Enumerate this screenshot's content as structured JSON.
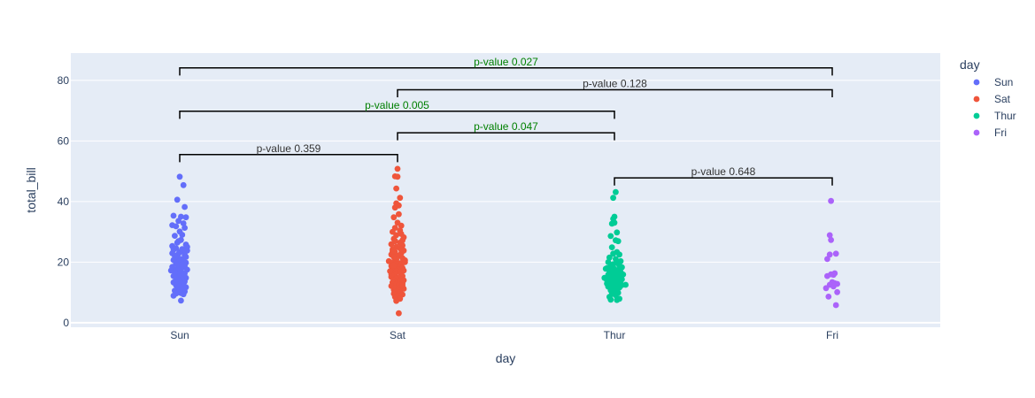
{
  "chart_data": {
    "type": "scatter",
    "subtype": "strip",
    "xlabel": "day",
    "ylabel": "total_bill",
    "categories": [
      "Sun",
      "Sat",
      "Thur",
      "Fri"
    ],
    "ylim": [
      -1.5,
      89
    ],
    "yticks": [
      0,
      20,
      40,
      60,
      80
    ],
    "grid": true,
    "legend": {
      "title": "day",
      "placement": "top-right"
    },
    "colors": {
      "plot_bg": "#e5ecf6",
      "significant": "#008000",
      "not_significant": "#333333",
      "bracket": "#000000"
    },
    "series": [
      {
        "name": "Sun",
        "color": "#636efa",
        "points": [
          [
            0.0,
            48.2
          ],
          [
            0.03,
            45.4
          ],
          [
            -0.02,
            40.6
          ],
          [
            0.04,
            38.2
          ],
          [
            -0.05,
            35.3
          ],
          [
            0.01,
            35.0
          ],
          [
            0.05,
            34.8
          ],
          [
            -0.01,
            33.6
          ],
          [
            0.03,
            32.8
          ],
          [
            -0.06,
            32.2
          ],
          [
            -0.03,
            31.8
          ],
          [
            0.04,
            31.3
          ],
          [
            0.0,
            30.1
          ],
          [
            0.02,
            29.0
          ],
          [
            -0.04,
            28.7
          ],
          [
            0.01,
            27.3
          ],
          [
            -0.02,
            26.4
          ],
          [
            0.05,
            25.8
          ],
          [
            -0.06,
            25.3
          ],
          [
            0.06,
            25.0
          ],
          [
            -0.03,
            24.6
          ],
          [
            0.02,
            24.3
          ],
          [
            -0.05,
            24.1
          ],
          [
            0.03,
            23.7
          ],
          [
            0.0,
            23.3
          ],
          [
            -0.01,
            22.8
          ],
          [
            0.04,
            22.4
          ],
          [
            -0.04,
            22.1
          ],
          [
            0.05,
            21.7
          ],
          [
            -0.02,
            21.3
          ],
          [
            0.01,
            21.0
          ],
          [
            -0.05,
            20.7
          ],
          [
            0.03,
            20.4
          ],
          [
            -0.01,
            20.1
          ],
          [
            0.05,
            19.8
          ],
          [
            -0.03,
            19.5
          ],
          [
            0.0,
            19.1
          ],
          [
            0.04,
            18.7
          ],
          [
            -0.06,
            18.4
          ],
          [
            0.02,
            18.1
          ],
          [
            -0.02,
            17.8
          ],
          [
            0.06,
            17.5
          ],
          [
            -0.07,
            17.2
          ],
          [
            -0.04,
            16.9
          ],
          [
            0.01,
            16.6
          ],
          [
            0.04,
            16.3
          ],
          [
            -0.02,
            16.0
          ],
          [
            0.03,
            15.7
          ],
          [
            -0.05,
            15.4
          ],
          [
            0.0,
            15.1
          ],
          [
            0.05,
            14.8
          ],
          [
            -0.03,
            14.5
          ],
          [
            0.02,
            14.2
          ],
          [
            -0.01,
            13.9
          ],
          [
            0.04,
            13.6
          ],
          [
            -0.05,
            13.3
          ],
          [
            0.01,
            13.0
          ],
          [
            0.03,
            12.7
          ],
          [
            -0.03,
            12.4
          ],
          [
            0.0,
            12.0
          ],
          [
            0.05,
            11.7
          ],
          [
            -0.02,
            11.3
          ],
          [
            0.02,
            10.9
          ],
          [
            -0.04,
            10.6
          ],
          [
            0.04,
            10.3
          ],
          [
            -0.01,
            10.1
          ],
          [
            0.01,
            9.8
          ],
          [
            -0.03,
            9.6
          ],
          [
            0.03,
            9.4
          ],
          [
            -0.05,
            8.9
          ],
          [
            0.01,
            7.3
          ],
          [
            -0.06,
            22.9
          ],
          [
            0.06,
            23.8
          ],
          [
            -0.01,
            26.9
          ],
          [
            0.02,
            19.3
          ],
          [
            -0.04,
            16.7
          ]
        ]
      },
      {
        "name": "Sat",
        "color": "#ef553b",
        "points": [
          [
            0.0,
            50.8
          ],
          [
            -0.02,
            48.3
          ],
          [
            0.0,
            48.2
          ],
          [
            -0.01,
            44.3
          ],
          [
            0.02,
            41.2
          ],
          [
            -0.01,
            39.4
          ],
          [
            0.01,
            38.7
          ],
          [
            -0.02,
            38.0
          ],
          [
            0.01,
            35.8
          ],
          [
            -0.03,
            34.8
          ],
          [
            0.0,
            33.0
          ],
          [
            0.03,
            32.0
          ],
          [
            -0.02,
            31.3
          ],
          [
            0.02,
            30.4
          ],
          [
            -0.04,
            30.0
          ],
          [
            0.03,
            29.3
          ],
          [
            -0.01,
            28.9
          ],
          [
            0.05,
            28.2
          ],
          [
            -0.03,
            27.7
          ],
          [
            0.04,
            27.2
          ],
          [
            -0.02,
            26.9
          ],
          [
            0.02,
            26.4
          ],
          [
            -0.05,
            25.9
          ],
          [
            0.04,
            25.5
          ],
          [
            -0.01,
            25.0
          ],
          [
            0.02,
            24.6
          ],
          [
            -0.04,
            24.2
          ],
          [
            0.05,
            23.8
          ],
          [
            -0.02,
            23.3
          ],
          [
            0.03,
            22.9
          ],
          [
            -0.05,
            22.5
          ],
          [
            0.01,
            22.1
          ],
          [
            -0.03,
            21.7
          ],
          [
            0.04,
            21.3
          ],
          [
            -0.01,
            20.9
          ],
          [
            0.06,
            20.6
          ],
          [
            -0.07,
            20.3
          ],
          [
            0.05,
            20.2
          ],
          [
            -0.04,
            19.9
          ],
          [
            0.02,
            19.6
          ],
          [
            -0.02,
            19.3
          ],
          [
            0.03,
            19.0
          ],
          [
            -0.05,
            18.7
          ],
          [
            0.01,
            18.4
          ],
          [
            0.04,
            18.1
          ],
          [
            -0.03,
            17.8
          ],
          [
            0.0,
            17.5
          ],
          [
            0.05,
            17.2
          ],
          [
            -0.01,
            16.9
          ],
          [
            0.02,
            16.6
          ],
          [
            -0.04,
            16.3
          ],
          [
            0.03,
            16.0
          ],
          [
            -0.02,
            15.7
          ],
          [
            0.04,
            15.4
          ],
          [
            -0.05,
            15.1
          ],
          [
            0.01,
            14.8
          ],
          [
            -0.01,
            14.5
          ],
          [
            0.03,
            14.2
          ],
          [
            -0.03,
            13.9
          ],
          [
            0.02,
            13.6
          ],
          [
            -0.04,
            13.3
          ],
          [
            0.04,
            13.0
          ],
          [
            -0.01,
            12.7
          ],
          [
            0.01,
            12.4
          ],
          [
            -0.05,
            12.1
          ],
          [
            0.03,
            11.8
          ],
          [
            -0.02,
            11.5
          ],
          [
            0.05,
            11.2
          ],
          [
            -0.03,
            10.9
          ],
          [
            0.01,
            10.6
          ],
          [
            -0.01,
            10.3
          ],
          [
            0.02,
            10.0
          ],
          [
            -0.03,
            9.6
          ],
          [
            0.04,
            9.3
          ],
          [
            0.0,
            8.9
          ],
          [
            -0.02,
            8.5
          ],
          [
            0.02,
            7.9
          ],
          [
            -0.01,
            7.2
          ],
          [
            0.01,
            3.1
          ],
          [
            -0.05,
            15.9
          ],
          [
            0.05,
            14.0
          ],
          [
            -0.06,
            17.0
          ],
          [
            0.06,
            20.0
          ],
          [
            -0.04,
            23.5
          ],
          [
            0.04,
            12.3
          ],
          [
            -0.02,
            27.0
          ],
          [
            0.03,
            24.1
          ],
          [
            -0.03,
            18.9
          ]
        ]
      },
      {
        "name": "Thur",
        "color": "#00cc96",
        "points": [
          [
            0.01,
            43.1
          ],
          [
            -0.01,
            41.2
          ],
          [
            0.0,
            35.0
          ],
          [
            -0.01,
            34.3
          ],
          [
            0.0,
            33.0
          ],
          [
            -0.02,
            32.7
          ],
          [
            0.02,
            29.8
          ],
          [
            -0.03,
            28.6
          ],
          [
            0.01,
            27.2
          ],
          [
            0.03,
            26.9
          ],
          [
            -0.02,
            24.9
          ],
          [
            0.02,
            23.3
          ],
          [
            -0.01,
            22.8
          ],
          [
            0.04,
            22.5
          ],
          [
            -0.04,
            21.5
          ],
          [
            0.01,
            21.0
          ],
          [
            0.05,
            20.3
          ],
          [
            -0.05,
            20.0
          ],
          [
            0.02,
            19.7
          ],
          [
            -0.01,
            19.3
          ],
          [
            0.04,
            18.9
          ],
          [
            -0.03,
            18.6
          ],
          [
            0.06,
            18.3
          ],
          [
            -0.06,
            18.0
          ],
          [
            0.0,
            17.7
          ],
          [
            0.03,
            17.3
          ],
          [
            -0.04,
            17.0
          ],
          [
            0.05,
            16.7
          ],
          [
            -0.02,
            16.4
          ],
          [
            0.01,
            16.1
          ],
          [
            -0.05,
            15.8
          ],
          [
            0.04,
            15.5
          ],
          [
            -0.01,
            15.2
          ],
          [
            0.02,
            14.9
          ],
          [
            -0.03,
            14.6
          ],
          [
            0.06,
            14.3
          ],
          [
            -0.06,
            14.0
          ],
          [
            0.0,
            13.7
          ],
          [
            0.03,
            13.4
          ],
          [
            -0.04,
            13.1
          ],
          [
            0.05,
            12.8
          ],
          [
            -0.02,
            12.5
          ],
          [
            0.01,
            12.2
          ],
          [
            -0.05,
            11.9
          ],
          [
            0.04,
            11.6
          ],
          [
            -0.01,
            11.3
          ],
          [
            0.02,
            11.0
          ],
          [
            -0.03,
            10.7
          ],
          [
            0.06,
            12.4
          ],
          [
            -0.06,
            12.9
          ],
          [
            0.0,
            10.3
          ],
          [
            0.03,
            9.9
          ],
          [
            -0.02,
            9.5
          ],
          [
            0.01,
            9.1
          ],
          [
            -0.04,
            8.5
          ],
          [
            0.04,
            7.9
          ],
          [
            -0.03,
            7.6
          ],
          [
            0.02,
            7.5
          ],
          [
            0.09,
            12.5
          ],
          [
            -0.08,
            14.8
          ],
          [
            0.07,
            15.9
          ],
          [
            -0.07,
            17.8
          ]
        ]
      },
      {
        "name": "Fri",
        "color": "#ab63fa",
        "points": [
          [
            -0.01,
            40.2
          ],
          [
            -0.02,
            28.9
          ],
          [
            -0.01,
            27.3
          ],
          [
            -0.02,
            22.5
          ],
          [
            0.03,
            22.8
          ],
          [
            -0.04,
            21.0
          ],
          [
            0.02,
            16.3
          ],
          [
            -0.04,
            15.4
          ],
          [
            0.01,
            15.8
          ],
          [
            0.0,
            13.4
          ],
          [
            0.04,
            12.8
          ],
          [
            -0.02,
            12.5
          ],
          [
            -0.05,
            11.4
          ],
          [
            0.01,
            12.0
          ],
          [
            0.04,
            10.1
          ],
          [
            -0.03,
            8.6
          ],
          [
            0.03,
            5.8
          ],
          [
            -0.01,
            16.0
          ],
          [
            0.02,
            13.0
          ]
        ]
      }
    ],
    "annotations": [
      {
        "from": "Sun",
        "to": "Sat",
        "y": 55.5,
        "tick": 2.5,
        "text": "p-value 0.359",
        "significant": false
      },
      {
        "from": "Sat",
        "to": "Thur",
        "y": 62.7,
        "tick": 2.5,
        "text": "p-value 0.047",
        "significant": true
      },
      {
        "from": "Sun",
        "to": "Thur",
        "y": 69.8,
        "tick": 2.5,
        "text": "p-value 0.005",
        "significant": true
      },
      {
        "from": "Sat",
        "to": "Fri",
        "y": 76.9,
        "tick": 2.5,
        "text": "p-value 0.128",
        "significant": false
      },
      {
        "from": "Sun",
        "to": "Fri",
        "y": 84.1,
        "tick": 2.5,
        "text": "p-value 0.027",
        "significant": true
      },
      {
        "from": "Thur",
        "to": "Fri",
        "y": 47.8,
        "tick": 2.5,
        "text": "p-value 0.648",
        "significant": false
      }
    ]
  }
}
